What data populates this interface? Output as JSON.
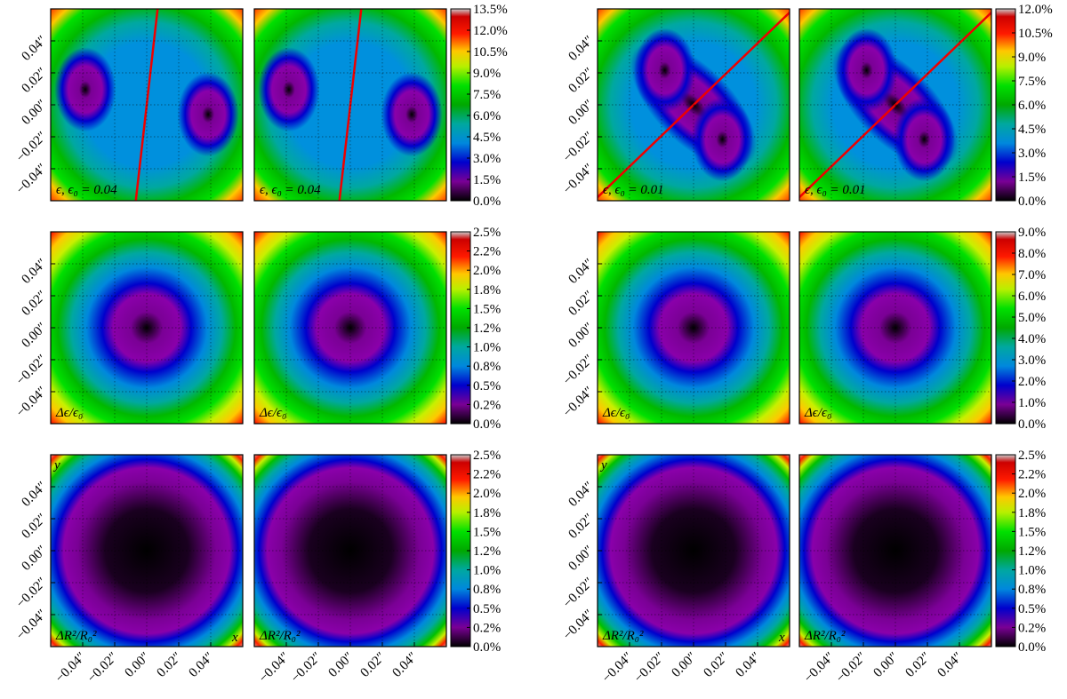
{
  "chart_data": [
    {
      "type": "heatmap",
      "panels": [
        {
          "label": "ϵ, ϵ₀ = 0.04"
        },
        {
          "label": "ϵ, ϵ₀ = 0.04"
        }
      ],
      "pattern": "two-blobs-vertical-split",
      "xlim": [
        -0.06,
        0.06
      ],
      "ylim": [
        -0.06,
        0.06
      ],
      "grid": true,
      "yticks": [
        {
          "value": -0.04,
          "label": "−0.04″"
        },
        {
          "value": -0.02,
          "label": "−0.02″"
        },
        {
          "value": 0,
          "label": "0.00″"
        },
        {
          "value": 0.02,
          "label": "0.02″"
        },
        {
          "value": 0.04,
          "label": "0.04″"
        }
      ],
      "clim": [
        0,
        13.5
      ],
      "cticks": [
        {
          "value": 0,
          "label": "0.0%"
        },
        {
          "value": 1.5,
          "label": "1.5%"
        },
        {
          "value": 3,
          "label": "3.0%"
        },
        {
          "value": 4.5,
          "label": "4.5%"
        },
        {
          "value": 6,
          "label": "6.0%"
        },
        {
          "value": 7.5,
          "label": "7.5%"
        },
        {
          "value": 9,
          "label": "9.0%"
        },
        {
          "value": 10.5,
          "label": "10.5%"
        },
        {
          "value": 12,
          "label": "12.0%"
        },
        {
          "value": 13.5,
          "label": "13.5%"
        }
      ]
    },
    {
      "type": "heatmap",
      "panels": [
        {
          "label": "Δϵ/ϵ₀"
        },
        {
          "label": "Δϵ/ϵ₀"
        }
      ],
      "pattern": "square",
      "xlim": [
        -0.06,
        0.06
      ],
      "ylim": [
        -0.06,
        0.06
      ],
      "grid": true,
      "yticks": [
        {
          "value": -0.04,
          "label": "−0.04″"
        },
        {
          "value": -0.02,
          "label": "−0.02″"
        },
        {
          "value": 0,
          "label": "0.00″"
        },
        {
          "value": 0.02,
          "label": "0.02″"
        },
        {
          "value": 0.04,
          "label": "0.04″"
        }
      ],
      "clim": [
        0,
        2.5
      ],
      "cticks": [
        {
          "value": 0,
          "label": "0.0%"
        },
        {
          "value": 0.25,
          "label": "0.2%"
        },
        {
          "value": 0.5,
          "label": "0.5%"
        },
        {
          "value": 0.75,
          "label": "0.8%"
        },
        {
          "value": 1,
          "label": "1.0%"
        },
        {
          "value": 1.25,
          "label": "1.2%"
        },
        {
          "value": 1.5,
          "label": "1.5%"
        },
        {
          "value": 1.75,
          "label": "1.8%"
        },
        {
          "value": 2,
          "label": "2.0%"
        },
        {
          "value": 2.25,
          "label": "2.2%"
        },
        {
          "value": 2.5,
          "label": "2.5%"
        }
      ]
    },
    {
      "type": "heatmap",
      "panels": [
        {
          "label": "ΔR²/R₀²"
        },
        {
          "label": "ΔR²/R₀²"
        }
      ],
      "pattern": "circle",
      "x_label": "x",
      "y_label": "y",
      "xlim": [
        -0.06,
        0.06
      ],
      "ylim": [
        -0.06,
        0.06
      ],
      "grid": true,
      "xticks": [
        {
          "value": -0.04,
          "label": "−0.04″"
        },
        {
          "value": -0.02,
          "label": "−0.02″"
        },
        {
          "value": 0,
          "label": "0.00″"
        },
        {
          "value": 0.02,
          "label": "0.02″"
        },
        {
          "value": 0.04,
          "label": "0.04″"
        }
      ],
      "yticks": [
        {
          "value": -0.04,
          "label": "−0.04″"
        },
        {
          "value": -0.02,
          "label": "−0.02″"
        },
        {
          "value": 0,
          "label": "0.00″"
        },
        {
          "value": 0.02,
          "label": "0.02″"
        },
        {
          "value": 0.04,
          "label": "0.04″"
        }
      ],
      "clim": [
        0,
        2.5
      ],
      "cticks": [
        {
          "value": 0,
          "label": "0.0%"
        },
        {
          "value": 0.25,
          "label": "0.2%"
        },
        {
          "value": 0.5,
          "label": "0.5%"
        },
        {
          "value": 0.75,
          "label": "0.8%"
        },
        {
          "value": 1,
          "label": "1.0%"
        },
        {
          "value": 1.25,
          "label": "1.2%"
        },
        {
          "value": 1.5,
          "label": "1.5%"
        },
        {
          "value": 1.75,
          "label": "1.8%"
        },
        {
          "value": 2,
          "label": "2.0%"
        },
        {
          "value": 2.25,
          "label": "2.2%"
        },
        {
          "value": 2.5,
          "label": "2.5%"
        }
      ]
    },
    {
      "type": "heatmap",
      "panels": [
        {
          "label": "ϵ, ϵ₀ = 0.01"
        },
        {
          "label": "ϵ, ϵ₀ = 0.01"
        }
      ],
      "pattern": "two-blobs-diagonal-split",
      "xlim": [
        -0.06,
        0.06
      ],
      "ylim": [
        -0.06,
        0.06
      ],
      "grid": true,
      "yticks": [
        {
          "value": -0.04,
          "label": "−0.04″"
        },
        {
          "value": -0.02,
          "label": "−0.02″"
        },
        {
          "value": 0,
          "label": "0.00″"
        },
        {
          "value": 0.02,
          "label": "0.02″"
        },
        {
          "value": 0.04,
          "label": "0.04″"
        }
      ],
      "clim": [
        0,
        12
      ],
      "cticks": [
        {
          "value": 0,
          "label": "0.0%"
        },
        {
          "value": 1.5,
          "label": "1.5%"
        },
        {
          "value": 3,
          "label": "3.0%"
        },
        {
          "value": 4.5,
          "label": "4.5%"
        },
        {
          "value": 6,
          "label": "6.0%"
        },
        {
          "value": 7.5,
          "label": "7.5%"
        },
        {
          "value": 9,
          "label": "9.0%"
        },
        {
          "value": 10.5,
          "label": "10.5%"
        },
        {
          "value": 12,
          "label": "12.0%"
        }
      ]
    },
    {
      "type": "heatmap",
      "panels": [
        {
          "label": "Δϵ/ϵ₀"
        },
        {
          "label": "Δϵ/ϵ₀"
        }
      ],
      "pattern": "square",
      "xlim": [
        -0.06,
        0.06
      ],
      "ylim": [
        -0.06,
        0.06
      ],
      "grid": true,
      "yticks": [
        {
          "value": -0.04,
          "label": "−0.04″"
        },
        {
          "value": -0.02,
          "label": "−0.02″"
        },
        {
          "value": 0,
          "label": "0.00″"
        },
        {
          "value": 0.02,
          "label": "0.02″"
        },
        {
          "value": 0.04,
          "label": "0.04″"
        }
      ],
      "clim": [
        0,
        9
      ],
      "cticks": [
        {
          "value": 0,
          "label": "0.0%"
        },
        {
          "value": 1,
          "label": "1.0%"
        },
        {
          "value": 2,
          "label": "2.0%"
        },
        {
          "value": 3,
          "label": "3.0%"
        },
        {
          "value": 4,
          "label": "4.0%"
        },
        {
          "value": 5,
          "label": "5.0%"
        },
        {
          "value": 6,
          "label": "6.0%"
        },
        {
          "value": 7,
          "label": "7.0%"
        },
        {
          "value": 8,
          "label": "8.0%"
        },
        {
          "value": 9,
          "label": "9.0%"
        }
      ]
    },
    {
      "type": "heatmap",
      "panels": [
        {
          "label": "ΔR²/R₀²"
        },
        {
          "label": "ΔR²/R₀²"
        }
      ],
      "pattern": "circle",
      "x_label": "x",
      "y_label": "y",
      "xlim": [
        -0.06,
        0.06
      ],
      "ylim": [
        -0.06,
        0.06
      ],
      "grid": true,
      "xticks": [
        {
          "value": -0.04,
          "label": "−0.04″"
        },
        {
          "value": -0.02,
          "label": "−0.02″"
        },
        {
          "value": 0,
          "label": "0.00″"
        },
        {
          "value": 0.02,
          "label": "0.02″"
        },
        {
          "value": 0.04,
          "label": "0.04″"
        }
      ],
      "yticks": [
        {
          "value": -0.04,
          "label": "−0.04″"
        },
        {
          "value": -0.02,
          "label": "−0.02″"
        },
        {
          "value": 0,
          "label": "0.00″"
        },
        {
          "value": 0.02,
          "label": "0.02″"
        },
        {
          "value": 0.04,
          "label": "0.04″"
        }
      ],
      "clim": [
        0,
        2.5
      ],
      "cticks": [
        {
          "value": 0,
          "label": "0.0%"
        },
        {
          "value": 0.25,
          "label": "0.2%"
        },
        {
          "value": 0.5,
          "label": "0.5%"
        },
        {
          "value": 0.75,
          "label": "0.8%"
        },
        {
          "value": 1,
          "label": "1.0%"
        },
        {
          "value": 1.25,
          "label": "1.2%"
        },
        {
          "value": 1.5,
          "label": "1.5%"
        },
        {
          "value": 1.75,
          "label": "1.8%"
        },
        {
          "value": 2,
          "label": "2.0%"
        },
        {
          "value": 2.25,
          "label": "2.2%"
        },
        {
          "value": 2.5,
          "label": "2.5%"
        }
      ]
    }
  ]
}
